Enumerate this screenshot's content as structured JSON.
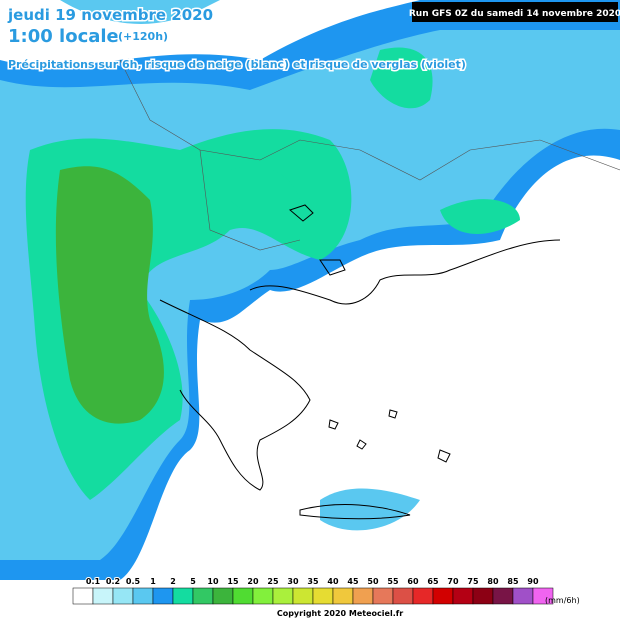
{
  "header": {
    "date": "jeudi 19 novembre 2020",
    "time": "1:00 locale",
    "lead": "(+120h)",
    "subtitle": "Précipitations sur 6h, risque de neige (blanc) et risque de verglas (violet)",
    "run": "Run GFS 0Z du samedi 14 novembre 2020"
  },
  "legend": {
    "labels": [
      "0.1",
      "0.2",
      "0.5",
      "1",
      "2",
      "5",
      "10",
      "15",
      "20",
      "25",
      "30",
      "35",
      "40",
      "45",
      "50",
      "55",
      "60",
      "65",
      "70",
      "75",
      "80",
      "85",
      "90"
    ],
    "colors": [
      "#ffffff",
      "#c8f5fa",
      "#96e6f5",
      "#5ac8f0",
      "#1e96f0",
      "#14dca0",
      "#32c864",
      "#3cb43c",
      "#50dc32",
      "#82f03c",
      "#aaf03c",
      "#cce632",
      "#e6dc32",
      "#f0c83c",
      "#f0a050",
      "#e6785a",
      "#dc5046",
      "#e62828",
      "#d20000",
      "#b40014",
      "#8c0014",
      "#781446",
      "#a050c8",
      "#f064f0"
    ],
    "unit": "(mm/6h)"
  },
  "footer": {
    "copyright": "Copyright 2020 Meteociel.fr"
  }
}
